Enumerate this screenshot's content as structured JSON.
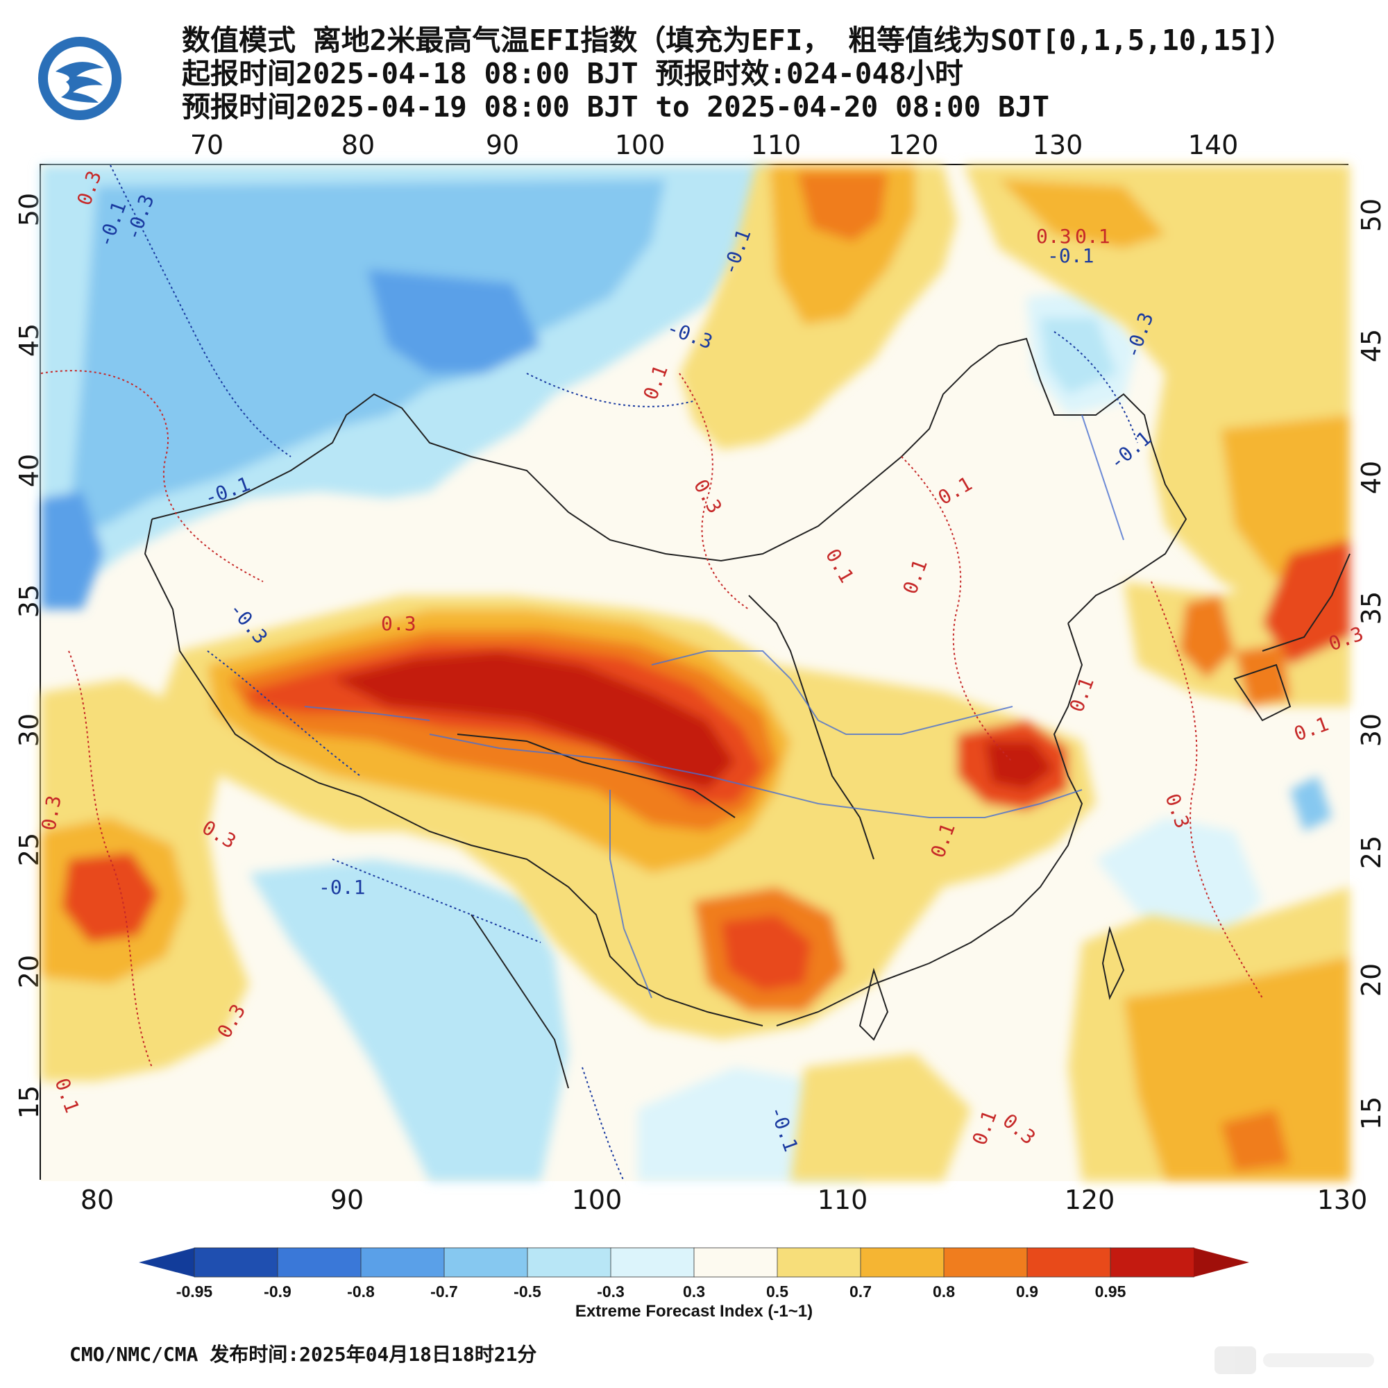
{
  "header": {
    "line1": "数值模式 离地2米最高气温EFI指数（填充为EFI， 粗等值线为SOT[0,1,5,10,15]）",
    "line2": "起报时间2025-04-18 08:00 BJT 预报时效:024-048小时",
    "line3": "预报时间2025-04-19 08:00 BJT to 2025-04-20 08:00 BJT"
  },
  "axes": {
    "top_lon": [
      "70",
      "80",
      "90",
      "100",
      "110",
      "120",
      "130",
      "140"
    ],
    "bottom_lon": [
      "80",
      "90",
      "100",
      "110",
      "120",
      "130"
    ],
    "left_lat": [
      "50",
      "45",
      "40",
      "35",
      "30",
      "25",
      "20",
      "15"
    ],
    "right_lat": [
      "50",
      "45",
      "40",
      "35",
      "30",
      "25",
      "20",
      "15"
    ]
  },
  "contour_labels": {
    "positive": [
      "0.3",
      "0.1",
      "0.3",
      "0.1",
      "0.3",
      "0.1",
      "0.1",
      "0.3",
      "0.1",
      "0.3",
      "0.3",
      "0.1",
      "0.3",
      "0.3",
      "0.1",
      "0.1",
      "0.3",
      "0.1",
      "0.3",
      "0.1"
    ],
    "negative": [
      "-0.1",
      "-0.3",
      "-0.1",
      "-0.3",
      "-0.1",
      "-0.3",
      "-0.1",
      "-0.1",
      "-0.3",
      "-0.1",
      "-0.1"
    ]
  },
  "colorbar": {
    "labels": [
      "-0.95",
      "-0.9",
      "-0.8",
      "-0.7",
      "-0.5",
      "-0.3",
      "0.3",
      "0.5",
      "0.7",
      "0.8",
      "0.9",
      "0.95"
    ],
    "colors": [
      "#1f4fb0",
      "#3a78d8",
      "#5aa0e8",
      "#86c8f0",
      "#b8e6f6",
      "#dcf4fb",
      "#fdfaf0",
      "#f7de7a",
      "#f5b533",
      "#f07d1e",
      "#e84a1a",
      "#c41a10"
    ],
    "low_arrow_color": "#123c9a",
    "high_arrow_color": "#a00f0a",
    "title": "Extreme Forecast Index (-1~1)"
  },
  "footer": {
    "text": "CMO/NMC/CMA 发布时间:2025年04月18日18时21分"
  }
}
